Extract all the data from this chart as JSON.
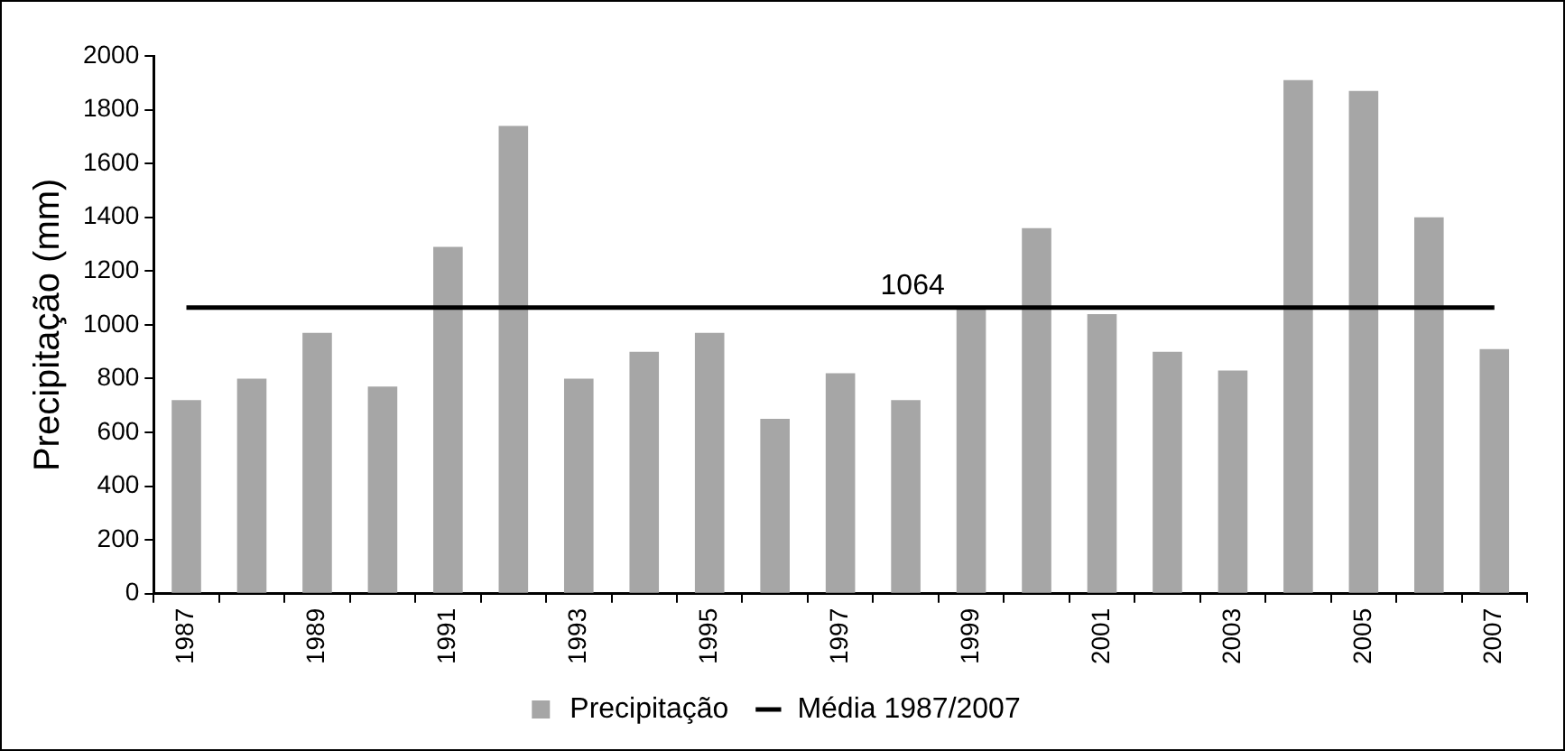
{
  "chart_data": {
    "type": "bar",
    "ylabel": "Precipitação (mm)",
    "categories": [
      "1987",
      null,
      "1989",
      null,
      "1991",
      null,
      "1993",
      null,
      "1995",
      null,
      "1997",
      null,
      "1999",
      null,
      "2001",
      null,
      "2003",
      null,
      "2005",
      null,
      "2007"
    ],
    "series": [
      {
        "name": "Precipitação",
        "color": "#a6a6a6",
        "values": [
          720,
          800,
          970,
          770,
          1290,
          1740,
          800,
          900,
          970,
          650,
          820,
          720,
          1070,
          1360,
          1040,
          900,
          830,
          1910,
          1870,
          1400,
          910
        ]
      },
      {
        "name": "Média 1987/2007",
        "type": "line",
        "color": "#000000",
        "values": [
          1064,
          1064,
          1064,
          1064,
          1064,
          1064,
          1064,
          1064,
          1064,
          1064,
          1064,
          1064,
          1064,
          1064,
          1064,
          1064,
          1064,
          1064,
          1064,
          1064,
          1064
        ]
      }
    ],
    "annotations": [
      {
        "text": "1064",
        "y": 1064
      }
    ],
    "ylim": [
      0,
      2000
    ],
    "yticks": [
      0,
      200,
      400,
      600,
      800,
      1000,
      1200,
      1400,
      1600,
      1800,
      2000
    ],
    "grid": false,
    "legend": "bottom",
    "marker": "none"
  }
}
